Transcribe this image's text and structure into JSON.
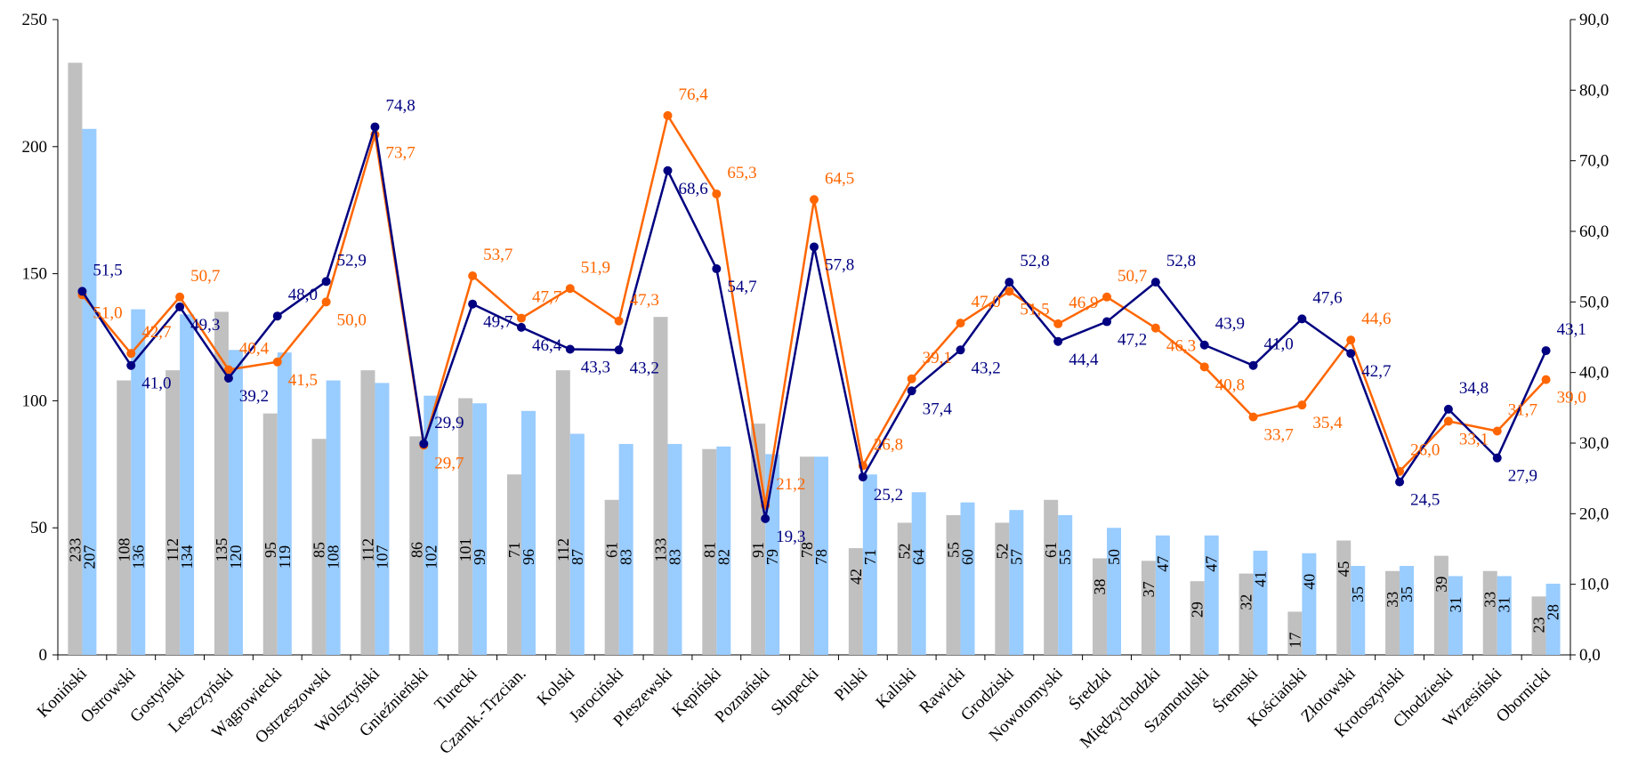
{
  "chart_data": {
    "type": "bar",
    "categories": [
      "Koniński",
      "Ostrowski",
      "Gostyński",
      "Leszczyński",
      "Wągrowiecki",
      "Ostrzeszowski",
      "Wolsztyński",
      "Gnieźnieński",
      "Turecki",
      "Czarnk.-Trzcian.",
      "Kolski",
      "Jarociński",
      "Pleszewski",
      "Kępiński",
      "Poznański",
      "Słupecki",
      "Pilski",
      "Kaliski",
      "Rawicki",
      "Grodziski",
      "Nowotomyski",
      "Średzki",
      "Międzychodzki",
      "Szamotulski",
      "Śremski",
      "Kościański",
      "Złotowski",
      "Krotoszyński",
      "Chodzieski",
      "Wrzesiński",
      "Obornicki"
    ],
    "left_axis": {
      "ylim": [
        0,
        250
      ],
      "ticks": [
        "0",
        "50",
        "100",
        "150",
        "200",
        "250"
      ]
    },
    "right_axis": {
      "ylim": [
        0,
        90
      ],
      "ticks": [
        "0,0",
        "10,0",
        "20,0",
        "30,0",
        "40,0",
        "50,0",
        "60,0",
        "70,0",
        "80,0",
        "90,0"
      ]
    },
    "series": [
      {
        "kind": "bar",
        "axis": "left",
        "color": "#c0c0c0",
        "values": [
          233,
          108,
          112,
          135,
          95,
          85,
          112,
          86,
          101,
          71,
          112,
          61,
          133,
          81,
          91,
          78,
          42,
          52,
          55,
          52,
          61,
          38,
          37,
          29,
          32,
          17,
          45,
          33,
          39,
          33,
          23
        ],
        "labels": [
          "233",
          "108",
          "112",
          "135",
          "95",
          "85",
          "112",
          "86",
          "101",
          "71",
          "112",
          "61",
          "133",
          "81",
          "91",
          "78",
          "42",
          "52",
          "55",
          "52",
          "61",
          "38",
          "37",
          "29",
          "32",
          "17",
          "45",
          "33",
          "39",
          "33",
          "23"
        ]
      },
      {
        "kind": "bar",
        "axis": "left",
        "color": "#99ccff",
        "values": [
          207,
          136,
          134,
          120,
          119,
          108,
          107,
          102,
          99,
          96,
          87,
          83,
          83,
          82,
          79,
          78,
          71,
          64,
          60,
          57,
          55,
          50,
          47,
          47,
          41,
          40,
          35,
          35,
          31,
          31,
          28
        ],
        "labels": [
          "207",
          "136",
          "134",
          "120",
          "119",
          "108",
          "107",
          "102",
          "99",
          "96",
          "87",
          "83",
          "83",
          "82",
          "79",
          "78",
          "71",
          "64",
          "60",
          "57",
          "55",
          "50",
          "47",
          "47",
          "41",
          "40",
          "35",
          "35",
          "31",
          "31",
          "28"
        ]
      },
      {
        "kind": "line",
        "axis": "right",
        "color": "#ff6600",
        "values": [
          51.0,
          42.7,
          50.7,
          40.4,
          41.5,
          50.0,
          73.7,
          29.7,
          53.7,
          47.7,
          51.9,
          47.3,
          76.4,
          65.3,
          21.2,
          64.5,
          26.8,
          39.1,
          47.0,
          51.5,
          46.9,
          50.7,
          46.3,
          40.8,
          33.7,
          35.4,
          44.6,
          26.0,
          33.1,
          31.7,
          39.0
        ],
        "labels": [
          "51,0",
          "42,7",
          "50,7",
          "40,4",
          "41,5",
          "50,0",
          "73,7",
          "29,7",
          "53,7",
          "47,7",
          "51,9",
          "47,3",
          "76,4",
          "65,3",
          "21,2",
          "64,5",
          "26,8",
          "39,1",
          "47,0",
          "51,5",
          "46,9",
          "50,7",
          "46,3",
          "40,8",
          "33,7",
          "35,4",
          "44,6",
          "26,0",
          "33,1",
          "31,7",
          "39,0"
        ]
      },
      {
        "kind": "line",
        "axis": "right",
        "color": "#000080",
        "values": [
          51.5,
          41.0,
          49.3,
          39.2,
          48.0,
          52.9,
          74.8,
          29.9,
          49.7,
          46.4,
          43.3,
          43.2,
          68.6,
          54.7,
          19.3,
          57.8,
          25.2,
          37.4,
          43.2,
          52.8,
          44.4,
          47.2,
          52.8,
          43.9,
          41.0,
          47.6,
          42.7,
          24.5,
          34.8,
          27.9,
          43.1
        ],
        "labels": [
          "51,5",
          "41,0",
          "49,3",
          "39,2",
          "48,0",
          "52,9",
          "74,8",
          "29,9",
          "49,7",
          "46,4",
          "43,3",
          "43,2",
          "68,6",
          "54,7",
          "19,3",
          "57,8",
          "25,2",
          "37,4",
          "43,2",
          "52,8",
          "44,4",
          "47,2",
          "52,8",
          "43,9",
          "41,0",
          "47,6",
          "42,7",
          "24,5",
          "34,8",
          "27,9",
          "43,1"
        ]
      }
    ],
    "grid": false,
    "legend": "none"
  }
}
